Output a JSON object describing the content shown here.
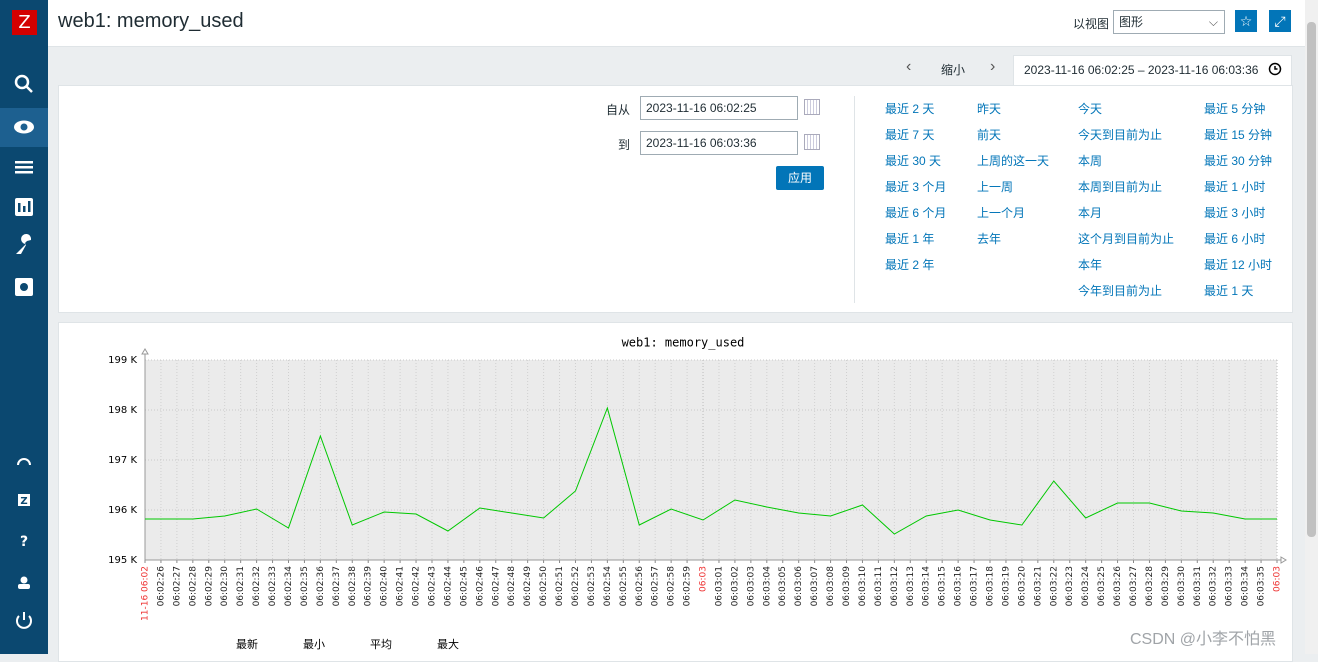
{
  "sidebar": {
    "logo": "Z",
    "help": "?",
    "support_logo": "Z"
  },
  "header": {
    "title": "web1: memory_used",
    "view_as_label": "以视图",
    "view_as_value": "图形"
  },
  "timenav": {
    "zoom_out": "缩小",
    "range": "2023-11-16 06:02:25 – 2023-11-16 06:03:36"
  },
  "filter": {
    "from_label": "自从",
    "from_value": "2023-11-16 06:02:25",
    "to_label": "到",
    "to_value": "2023-11-16 06:03:36",
    "apply": "应用",
    "quick_ranges": [
      [
        "最近 2 天",
        "最近 7 天",
        "最近 30 天",
        "最近 3 个月",
        "最近 6 个月",
        "最近 1 年",
        "最近 2 年"
      ],
      [
        "昨天",
        "前天",
        "上周的这一天",
        "上一周",
        "上一个月",
        "去年"
      ],
      [
        "今天",
        "今天到目前为止",
        "本周",
        "本周到目前为止",
        "本月",
        "这个月到目前为止",
        "本年",
        "今年到目前为止"
      ],
      [
        "最近 5 分钟",
        "最近 15 分钟",
        "最近 30 分钟",
        "最近 1 小时",
        "最近 3 小时",
        "最近 6 小时",
        "最近 12 小时",
        "最近 1 天"
      ]
    ]
  },
  "chart_data": {
    "type": "line",
    "title": "web1: memory_used",
    "xlim": [
      "06:02:25",
      "06:03:36"
    ],
    "xticks": [
      {
        "value": "06:02:25",
        "label": "11-16 06:02"
      },
      "06:02:26",
      "06:02:27",
      "06:02:28",
      "06:02:29",
      "06:02:30",
      "06:02:31",
      "06:02:32",
      "06:02:33",
      "06:02:34",
      "06:02:35",
      "06:02:36",
      "06:02:37",
      "06:02:38",
      "06:02:39",
      "06:02:40",
      "06:02:41",
      "06:02:42",
      "06:02:43",
      "06:02:44",
      "06:02:45",
      "06:02:46",
      "06:02:47",
      "06:02:48",
      "06:02:49",
      "06:02:50",
      "06:02:51",
      "06:02:52",
      "06:02:53",
      "06:02:54",
      "06:02:55",
      "06:02:56",
      "06:02:57",
      "06:02:58",
      "06:02:59",
      {
        "value": "06:03:00",
        "label": "06:03"
      },
      "06:03:01",
      "06:03:02",
      "06:03:03",
      "06:03:04",
      "06:03:05",
      "06:03:06",
      "06:03:07",
      "06:03:08",
      "06:03:09",
      "06:03:10",
      "06:03:11",
      "06:03:12",
      "06:03:13",
      "06:03:14",
      "06:03:15",
      "06:03:16",
      "06:03:17",
      "06:03:18",
      "06:03:19",
      "06:03:20",
      "06:03:21",
      "06:03:22",
      "06:03:23",
      "06:03:24",
      "06:03:25",
      "06:03:26",
      "06:03:27",
      "06:03:28",
      "06:03:29",
      "06:03:30",
      "06:03:31",
      "06:03:32",
      "06:03:33",
      "06:03:34",
      "06:03:35",
      {
        "value": "06:03:36",
        "label": "06:03"
      }
    ],
    "ylim": [
      195,
      199
    ],
    "yticks": [
      {
        "value": 195,
        "label": "195 K"
      },
      {
        "value": 196,
        "label": "196 K"
      },
      {
        "value": 197,
        "label": "197 K"
      },
      {
        "value": 198,
        "label": "198 K"
      },
      {
        "value": 199,
        "label": "199 K"
      }
    ],
    "grid": true,
    "x": [
      "06:02:25",
      "06:02:28",
      "06:02:30",
      "06:02:32",
      "06:02:34",
      "06:02:36",
      "06:02:38",
      "06:02:40",
      "06:02:42",
      "06:02:44",
      "06:02:46",
      "06:02:48",
      "06:02:50",
      "06:02:52",
      "06:02:54",
      "06:02:56",
      "06:02:58",
      "06:03:00",
      "06:03:02",
      "06:03:04",
      "06:03:06",
      "06:03:08",
      "06:03:10",
      "06:03:12",
      "06:03:14",
      "06:03:16",
      "06:03:18",
      "06:03:20",
      "06:03:22",
      "06:03:24",
      "06:03:26",
      "06:03:28",
      "06:03:30",
      "06:03:32",
      "06:03:34",
      "06:03:36"
    ],
    "series": [
      {
        "color": "#00c800",
        "values": [
          195.82,
          195.82,
          195.88,
          196.02,
          195.64,
          197.48,
          195.7,
          195.96,
          195.92,
          195.58,
          196.04,
          195.94,
          195.84,
          196.38,
          198.04,
          195.7,
          196.02,
          195.8,
          196.2,
          196.06,
          195.94,
          195.88,
          196.1,
          195.52,
          195.88,
          196.0,
          195.8,
          195.7,
          196.58,
          195.84,
          196.14,
          196.14,
          195.98,
          195.94,
          195.82,
          195.82
        ]
      }
    ],
    "legend_columns": [
      "最新",
      "最小",
      "平均",
      "最大"
    ]
  },
  "watermark": "CSDN @小李不怕黑"
}
